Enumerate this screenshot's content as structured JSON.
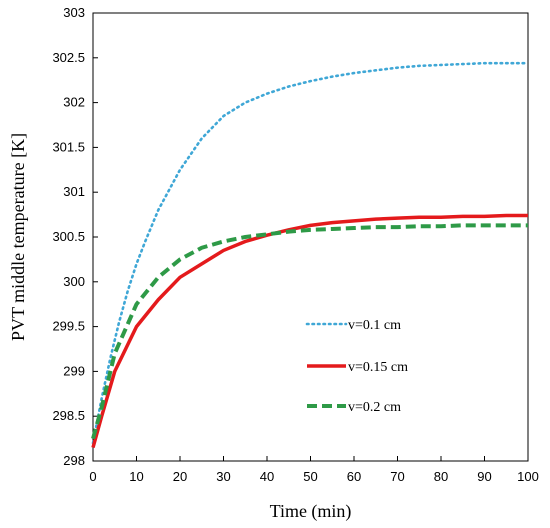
{
  "chart_data": {
    "type": "line",
    "title": "",
    "xlabel": "Time (min)",
    "ylabel": "PVT middle temperature [K]",
    "xlim": [
      0,
      100
    ],
    "ylim": [
      298,
      303
    ],
    "xticks": [
      "0",
      "10",
      "20",
      "30",
      "40",
      "50",
      "60",
      "70",
      "80",
      "90",
      "100"
    ],
    "yticks": [
      "298",
      "298.5",
      "299",
      "299.5",
      "300",
      "300.5",
      "301",
      "301.5",
      "302",
      "302.5",
      "303"
    ],
    "grid": false,
    "legend_position": "lower-right",
    "series": [
      {
        "name": "v=0.1 cm",
        "color": "#3fa7d6",
        "style": "dotted",
        "x": [
          0,
          2,
          4,
          6,
          8,
          10,
          12,
          15,
          20,
          25,
          30,
          35,
          40,
          45,
          50,
          55,
          60,
          65,
          70,
          75,
          80,
          85,
          90,
          95,
          100
        ],
        "y": [
          298.2,
          298.7,
          299.15,
          299.55,
          299.9,
          300.2,
          300.45,
          300.8,
          301.25,
          301.6,
          301.85,
          302.0,
          302.1,
          302.18,
          302.24,
          302.29,
          302.33,
          302.36,
          302.39,
          302.41,
          302.42,
          302.43,
          302.44,
          302.44,
          302.44
        ]
      },
      {
        "name": "v=0.15 cm",
        "color": "#e41a1c",
        "style": "solid",
        "x": [
          0,
          2,
          5,
          10,
          15,
          20,
          25,
          30,
          35,
          40,
          45,
          50,
          55,
          60,
          65,
          70,
          75,
          80,
          85,
          90,
          95,
          100
        ],
        "y": [
          298.15,
          298.5,
          299.0,
          299.5,
          299.8,
          300.05,
          300.2,
          300.35,
          300.45,
          300.52,
          300.58,
          300.63,
          300.66,
          300.68,
          300.7,
          300.71,
          300.72,
          300.72,
          300.73,
          300.73,
          300.74,
          300.74
        ]
      },
      {
        "name": "v=0.2 cm",
        "color": "#2e9a47",
        "style": "dashed",
        "x": [
          0,
          2,
          5,
          10,
          15,
          20,
          25,
          30,
          35,
          40,
          45,
          50,
          55,
          60,
          65,
          70,
          75,
          80,
          85,
          90,
          95,
          100
        ],
        "y": [
          298.25,
          298.6,
          299.2,
          299.75,
          300.05,
          300.25,
          300.38,
          300.45,
          300.5,
          300.53,
          300.56,
          300.58,
          300.59,
          300.6,
          300.61,
          300.61,
          300.62,
          300.62,
          300.63,
          300.63,
          300.63,
          300.63
        ]
      }
    ]
  }
}
